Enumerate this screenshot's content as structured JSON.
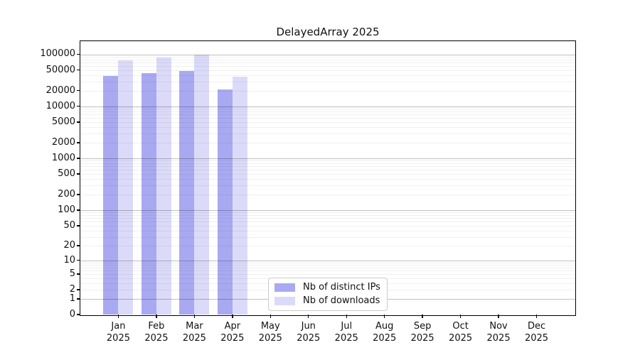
{
  "title": "DelayedArray 2025",
  "chart_data": {
    "type": "bar",
    "title": "DelayedArray 2025",
    "y_scale": "log1p (symlog-like, 0 at baseline)",
    "grid": "horizontal, dark lines at decades, faint minor lines at 2-9 multiples",
    "legend_position": "lower center inside plot",
    "ylim": [
      0,
      178000
    ],
    "y_ticks": [
      100000,
      50000,
      20000,
      10000,
      5000,
      2000,
      1000,
      500,
      200,
      100,
      50,
      20,
      10,
      5,
      2,
      1,
      0
    ],
    "categories": [
      "Jan",
      "Feb",
      "Mar",
      "Apr",
      "May",
      "Jun",
      "Jul",
      "Aug",
      "Sep",
      "Oct",
      "Nov",
      "Dec"
    ],
    "x_tick_second_line": "2025",
    "series": [
      {
        "name": "Nb of distinct IPs",
        "color": "#a9a9f1",
        "values": [
          38000,
          43500,
          48000,
          21000,
          null,
          null,
          null,
          null,
          null,
          null,
          null,
          null
        ]
      },
      {
        "name": "Nb of downloads",
        "color": "#dbdbf9",
        "values": [
          76000,
          86000,
          97000,
          37000,
          null,
          null,
          null,
          null,
          null,
          null,
          null,
          null
        ]
      }
    ]
  },
  "colors": {
    "spine": "#000000",
    "text": "#111111",
    "background": "#ffffff",
    "legend_border": "#cccccc",
    "bar_distinct_ips": "#a9a9f1",
    "bar_downloads": "#dbdbf9"
  }
}
